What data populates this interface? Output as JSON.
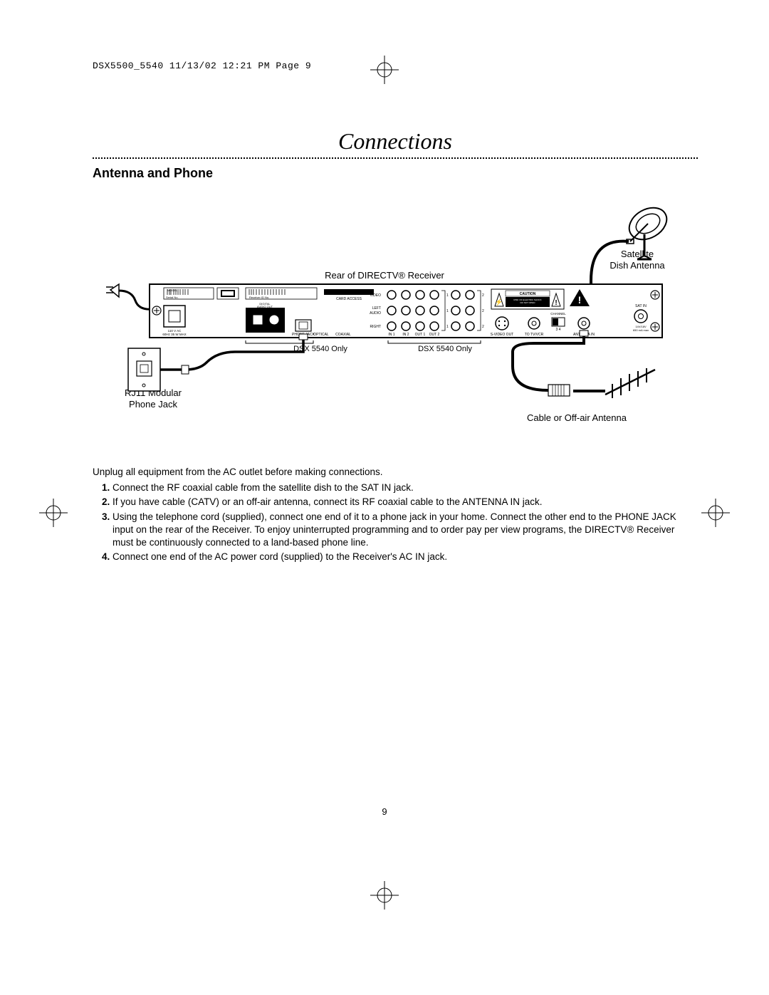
{
  "header": {
    "slug": "DSX5500_5540  11/13/02  12:21 PM  Page 9"
  },
  "title": "Connections",
  "subtitle": "Antenna and Phone",
  "diagram": {
    "labels": {
      "satellite": "Satellite\nDish Antenna",
      "rear": "Rear of DIRECTV® Receiver",
      "dsx1": "DSX 5540 Only",
      "dsx2": "DSX 5540 Only",
      "rj11": "RJ11 Modular\nPhone Jack",
      "cable": "Cable or Off-air Antenna"
    },
    "panel": {
      "smallText": {
        "model": "MODEL",
        "serial": "Serial No.",
        "rid": "Receiver ID No.",
        "ac": "110 V AC\n60Hz 35 W MAX",
        "cardAccess": "CARD ACCESS",
        "digitalAudio": "DIGITAL\nAUDIO OUT",
        "phoneJack": "PHONE JACK",
        "optical": "OPTICAL",
        "coaxial": "COAXIAL",
        "video": "VIDEO",
        "left": "LEFT",
        "audio": "AUDIO",
        "right": "RIGHT",
        "in1": "IN 1",
        "in2": "IN 2",
        "out1": "OUT 1",
        "out2": "OUT 2",
        "svideo": "S-VIDEO OUT",
        "tovcr": "TO TV/VCR",
        "channel": "CHANNEL",
        "ch34": "3    4",
        "antennaIn": "ANTENNA IN",
        "caution": "CAUTION",
        "cautionSub": "RISK OF ELECTRIC SHOCK\nDO NOT OPEN",
        "satIn": "SAT IN\n14V/18V\n650 mA max"
      }
    }
  },
  "body": {
    "intro": "Unplug all equipment from the AC outlet before making connections.",
    "steps": [
      "Connect the RF coaxial cable from the satellite dish to the SAT IN jack.",
      "If you have cable (CATV) or an off-air antenna, connect its RF coaxial cable to the ANTENNA IN jack.",
      "Using the telephone cord (supplied), connect one end of it to a phone jack in your home. Connect the other end to the PHONE JACK input on the rear of the Receiver. To enjoy uninterrupted programming and to order pay per view programs, the DIRECTV® Receiver must be continuously connected to a land-based phone line.",
      "Connect one end of the AC power cord (supplied) to the Receiver's AC IN jack."
    ]
  },
  "pageNumber": "9",
  "style": {
    "fontSizes": {
      "header": 13,
      "title": 32,
      "subtitle": 18,
      "body": 13.5,
      "diagLabel": 13,
      "tiny": 5.5
    },
    "colors": {
      "text": "#000000",
      "background": "#ffffff"
    }
  }
}
